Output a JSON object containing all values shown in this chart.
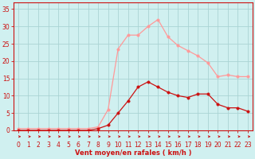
{
  "x": [
    0,
    1,
    2,
    3,
    4,
    5,
    6,
    7,
    8,
    9,
    10,
    11,
    12,
    13,
    14,
    15,
    16,
    17,
    18,
    19,
    20,
    21,
    22,
    23
  ],
  "dark_red": [
    0,
    0,
    0,
    0,
    0,
    0,
    0,
    0,
    0.5,
    1.5,
    5,
    8.5,
    12.5,
    14,
    12.5,
    11,
    10,
    9.5,
    10.5,
    10.5,
    7.5,
    6.5,
    6.5,
    5.5
  ],
  "light_red": [
    0.5,
    0.5,
    0.5,
    0.5,
    0.5,
    0.5,
    0.5,
    0.5,
    1,
    6,
    23.5,
    27.5,
    27.5,
    30,
    32,
    27,
    24.5,
    23,
    21.5,
    19.5,
    15.5,
    16,
    15.5,
    15.5
  ],
  "arrow_dx": [
    0.4,
    0.4,
    0.4,
    0.4,
    0.4,
    0.4,
    0.4,
    0.4,
    0.3,
    0.2,
    -0.15,
    -0.15,
    0.4,
    -0.3,
    -0.3,
    0.3,
    0.2,
    -0.3,
    0.3,
    -0.3,
    0.3,
    -0.3,
    0.4,
    0.4
  ],
  "arrow_dy": [
    0,
    0,
    0,
    0,
    0,
    0,
    0,
    0,
    -0.15,
    -0.15,
    -0.15,
    -0.15,
    0,
    -0.15,
    -0.15,
    0.0,
    0,
    -0.15,
    0,
    -0.15,
    0,
    -0.15,
    0,
    0
  ],
  "xlim": [
    -0.5,
    23.5
  ],
  "ylim": [
    0,
    37
  ],
  "yticks": [
    0,
    5,
    10,
    15,
    20,
    25,
    30,
    35
  ],
  "xticks": [
    0,
    1,
    2,
    3,
    4,
    5,
    6,
    7,
    8,
    9,
    10,
    11,
    12,
    13,
    14,
    15,
    16,
    17,
    18,
    19,
    20,
    21,
    22,
    23
  ],
  "xlabel": "Vent moyen/en rafales ( km/h )",
  "bg_color": "#d0f0f0",
  "grid_color": "#aad4d4",
  "dark_red_color": "#cc1111",
  "light_red_color": "#ff9999",
  "arrow_color": "#cc1111",
  "axis_color": "#cc1111",
  "tick_color": "#cc1111",
  "label_color": "#cc1111",
  "marker_size": 2.5,
  "tick_fontsize": 5.5,
  "label_fontsize": 6.0
}
